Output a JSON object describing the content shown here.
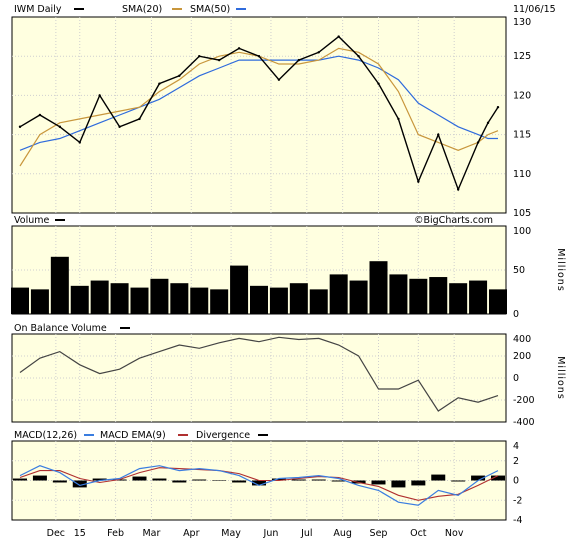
{
  "header": {
    "symbol_label": "IWM Daily",
    "sma20_label": "SMA(20)",
    "sma50_label": "SMA(50)",
    "date": "11/06/15"
  },
  "watermark": "©BigCharts.com",
  "colors": {
    "panel_bg": "#ffffe0",
    "price": "#000000",
    "sma20": "#c8963c",
    "sma50": "#2f6bdc",
    "macd": "#3a7de0",
    "macd_ema": "#b03030",
    "divergence": "#000000",
    "grid": "#cfcfcf"
  },
  "panels": {
    "volume": {
      "label": "Volume",
      "unit": "Millions"
    },
    "obv": {
      "label": "On Balance Volume",
      "unit": "Millions"
    },
    "macd": {
      "label": "MACD(12,26)",
      "ema_label": "MACD EMA(9)",
      "div_label": "Divergence"
    }
  },
  "chart_data": [
    {
      "type": "line",
      "name": "price",
      "xlabel_ticks": [
        "Dec",
        "15",
        "Feb",
        "Mar",
        "Apr",
        "May",
        "Jun",
        "Jul",
        "Aug",
        "Sep",
        "Oct",
        "Nov"
      ],
      "ylim": [
        105,
        130
      ],
      "yticks": [
        105,
        110,
        115,
        120,
        125,
        130
      ],
      "x_months": [
        0,
        0.5,
        1,
        1.5,
        2,
        2.5,
        3,
        3.5,
        4,
        4.5,
        5,
        5.5,
        6,
        6.5,
        7,
        7.5,
        8,
        8.5,
        9,
        9.5,
        10,
        10.5,
        11,
        11.5,
        11.75,
        12
      ],
      "close": [
        116,
        117.5,
        116,
        114,
        120,
        116,
        117,
        121.5,
        122.5,
        125,
        124.5,
        126,
        125,
        122,
        124.5,
        125.5,
        127.5,
        125,
        121.5,
        117,
        109,
        115,
        108,
        114,
        116.5,
        118.5
      ],
      "sma20": [
        111,
        115,
        116.5,
        117,
        117.5,
        118,
        118.5,
        120.5,
        122,
        124,
        125,
        125.5,
        125,
        124,
        124,
        124.5,
        126,
        125.5,
        124,
        120.5,
        115,
        114,
        113,
        114,
        115,
        115.5
      ],
      "sma50": [
        113,
        114,
        114.5,
        115.5,
        116.5,
        117.5,
        118.5,
        119.5,
        121,
        122.5,
        123.5,
        124.5,
        124.5,
        124.5,
        124.5,
        124.5,
        125,
        124.5,
        123.5,
        122,
        119,
        117.5,
        116,
        115,
        114.5,
        114.5
      ]
    },
    {
      "type": "area",
      "name": "volume",
      "ylim": [
        0,
        100
      ],
      "yticks": [
        0,
        50,
        100
      ],
      "x_months": [
        0,
        0.5,
        1,
        1.5,
        2,
        2.5,
        3,
        3.5,
        4,
        4.5,
        5,
        5.5,
        6,
        6.5,
        7,
        7.5,
        8,
        8.5,
        9,
        9.5,
        10,
        10.5,
        11,
        11.5,
        12
      ],
      "values": [
        30,
        28,
        65,
        32,
        38,
        35,
        30,
        40,
        35,
        30,
        28,
        55,
        32,
        30,
        35,
        28,
        45,
        38,
        60,
        45,
        40,
        42,
        35,
        38,
        28
      ]
    },
    {
      "type": "line",
      "name": "on balance volume",
      "ylim": [
        -400,
        400
      ],
      "yticks": [
        -400,
        -200,
        0,
        200,
        400
      ],
      "x_months": [
        0,
        0.5,
        1,
        1.5,
        2,
        2.5,
        3,
        3.5,
        4,
        4.5,
        5,
        5.5,
        6,
        6.5,
        7,
        7.5,
        8,
        8.5,
        9,
        9.5,
        10,
        10.5,
        11,
        11.5,
        12
      ],
      "values": [
        50,
        180,
        240,
        120,
        40,
        80,
        180,
        240,
        300,
        270,
        320,
        360,
        330,
        370,
        350,
        360,
        300,
        200,
        -100,
        -100,
        -20,
        -300,
        -180,
        -220,
        -160
      ]
    },
    {
      "type": "line",
      "name": "macd",
      "ylim": [
        -4,
        4
      ],
      "yticks": [
        -4,
        -2,
        0,
        2,
        4
      ],
      "x_months": [
        0,
        0.5,
        1,
        1.5,
        2,
        2.5,
        3,
        3.5,
        4,
        4.5,
        5,
        5.5,
        6,
        6.5,
        7,
        7.5,
        8,
        8.5,
        9,
        9.5,
        10,
        10.5,
        11,
        11.5,
        12
      ],
      "macd": [
        0.5,
        1.5,
        0.8,
        -0.5,
        0,
        0.2,
        1.2,
        1.5,
        1.0,
        1.2,
        1.0,
        0.5,
        -0.5,
        0.2,
        0.3,
        0.5,
        0.2,
        -0.5,
        -1.0,
        -2.2,
        -2.5,
        -1.0,
        -1.5,
        0,
        1.0
      ],
      "ema": [
        0.3,
        1.0,
        1.0,
        0.2,
        -0.2,
        0.1,
        0.8,
        1.3,
        1.2,
        1.1,
        1.0,
        0.7,
        0,
        0,
        0.2,
        0.4,
        0.3,
        -0.2,
        -0.6,
        -1.5,
        -2.0,
        -1.6,
        -1.4,
        -0.5,
        0.5
      ],
      "divergence": [
        0.2,
        0.5,
        -0.2,
        -0.7,
        0.2,
        0.1,
        0.4,
        0.2,
        -0.2,
        0.1,
        0,
        -0.2,
        -0.5,
        0.2,
        0.1,
        0.1,
        -0.1,
        -0.3,
        -0.4,
        -0.7,
        -0.5,
        0.6,
        -0.1,
        0.5,
        0.5
      ]
    }
  ]
}
